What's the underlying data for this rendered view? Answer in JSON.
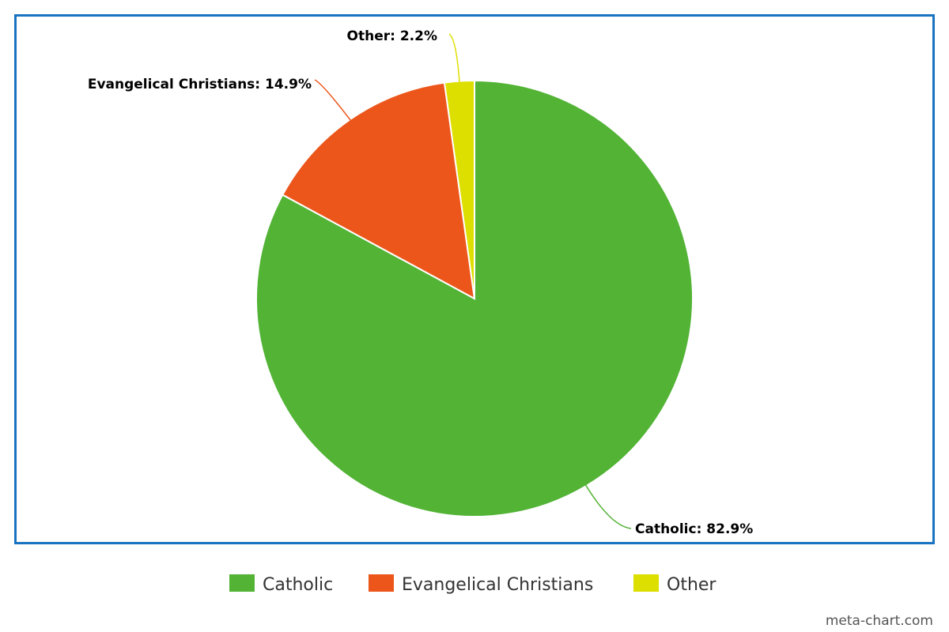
{
  "chart_data": {
    "type": "pie",
    "title": "",
    "slices": [
      {
        "label": "Catholic",
        "value": 82.9,
        "display": "Catholic: 82.9%",
        "color": "#52b335"
      },
      {
        "label": "Evangelical Christians",
        "value": 14.9,
        "display": "Evangelical Christians: 14.9%",
        "color": "#ec561b"
      },
      {
        "label": "Other",
        "value": 2.2,
        "display": "Other: 2.2%",
        "color": "#dddf00"
      }
    ],
    "legend": {
      "placement": "bottom",
      "items": [
        "Catholic",
        "Evangelical Christians",
        "Other"
      ]
    }
  },
  "colors": {
    "frame_border": "#1a73c0"
  },
  "credit": "meta-chart.com"
}
